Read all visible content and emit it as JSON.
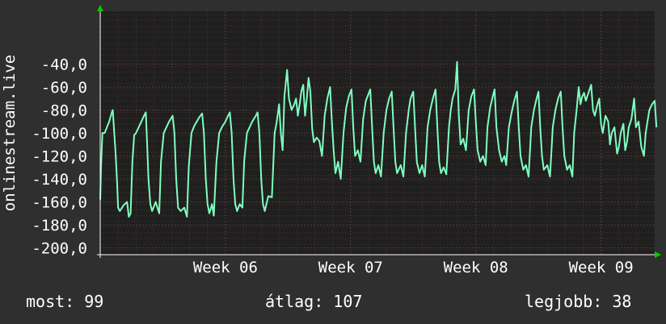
{
  "chart_data": {
    "type": "line",
    "ylabel": "onlinestream.live",
    "ylim": [
      -206,
      6
    ],
    "y_ticks": [
      "-40,0",
      "-60,0",
      "-80,0",
      "-100,0",
      "-120,0",
      "-140,0",
      "-160,0",
      "-180,0",
      "-200,0"
    ],
    "y_tick_values": [
      -40,
      -60,
      -80,
      -100,
      -120,
      -140,
      -160,
      -180,
      -200
    ],
    "x_ticks": [
      "Week 06",
      "Week 07",
      "Week 08",
      "Week 09"
    ],
    "x_tick_days": [
      7,
      14,
      21,
      28
    ],
    "x_range_days": [
      0,
      31
    ],
    "grid": true,
    "colors": {
      "line": "#7fffc0",
      "background": "#1f1f1f",
      "grid": "#5a3a3a",
      "axis_arrow": "#00cc00"
    },
    "series": [
      {
        "values": [
          [
            0.0,
            -158
          ],
          [
            0.05,
            -128
          ],
          [
            0.12,
            -100
          ],
          [
            0.25,
            -100
          ],
          [
            0.35,
            -96
          ],
          [
            0.5,
            -90
          ],
          [
            0.65,
            -82
          ],
          [
            0.7,
            -80
          ],
          [
            0.85,
            -115
          ],
          [
            0.95,
            -145
          ],
          [
            1.0,
            -165
          ],
          [
            1.1,
            -168
          ],
          [
            1.3,
            -163
          ],
          [
            1.5,
            -160
          ],
          [
            1.6,
            -173
          ],
          [
            1.7,
            -170
          ],
          [
            1.8,
            -125
          ],
          [
            1.9,
            -102
          ],
          [
            2.0,
            -100
          ],
          [
            2.15,
            -95
          ],
          [
            2.3,
            -90
          ],
          [
            2.45,
            -85
          ],
          [
            2.55,
            -82
          ],
          [
            2.6,
            -100
          ],
          [
            2.7,
            -140
          ],
          [
            2.8,
            -162
          ],
          [
            2.9,
            -168
          ],
          [
            3.1,
            -160
          ],
          [
            3.3,
            -170
          ],
          [
            3.4,
            -125
          ],
          [
            3.55,
            -100
          ],
          [
            3.7,
            -95
          ],
          [
            3.85,
            -90
          ],
          [
            4.05,
            -85
          ],
          [
            4.15,
            -100
          ],
          [
            4.25,
            -140
          ],
          [
            4.35,
            -165
          ],
          [
            4.5,
            -168
          ],
          [
            4.7,
            -165
          ],
          [
            4.85,
            -173
          ],
          [
            4.95,
            -130
          ],
          [
            5.1,
            -100
          ],
          [
            5.25,
            -94
          ],
          [
            5.4,
            -90
          ],
          [
            5.55,
            -86
          ],
          [
            5.7,
            -83
          ],
          [
            5.8,
            -100
          ],
          [
            5.9,
            -140
          ],
          [
            6.0,
            -162
          ],
          [
            6.1,
            -170
          ],
          [
            6.25,
            -162
          ],
          [
            6.35,
            -172
          ],
          [
            6.5,
            -125
          ],
          [
            6.65,
            -100
          ],
          [
            6.8,
            -95
          ],
          [
            7.0,
            -90
          ],
          [
            7.15,
            -85
          ],
          [
            7.25,
            -82
          ],
          [
            7.35,
            -100
          ],
          [
            7.45,
            -140
          ],
          [
            7.55,
            -162
          ],
          [
            7.65,
            -168
          ],
          [
            7.8,
            -162
          ],
          [
            7.95,
            -165
          ],
          [
            8.05,
            -125
          ],
          [
            8.2,
            -100
          ],
          [
            8.35,
            -95
          ],
          [
            8.5,
            -90
          ],
          [
            8.7,
            -85
          ],
          [
            8.8,
            -82
          ],
          [
            8.9,
            -100
          ],
          [
            9.0,
            -140
          ],
          [
            9.1,
            -162
          ],
          [
            9.2,
            -168
          ],
          [
            9.4,
            -155
          ],
          [
            9.6,
            -156
          ],
          [
            9.75,
            -100
          ],
          [
            9.85,
            -92
          ],
          [
            10.0,
            -75
          ],
          [
            10.1,
            -100
          ],
          [
            10.2,
            -115
          ],
          [
            10.3,
            -68
          ],
          [
            10.45,
            -45
          ],
          [
            10.55,
            -70
          ],
          [
            10.7,
            -80
          ],
          [
            10.85,
            -75
          ],
          [
            10.95,
            -70
          ],
          [
            11.05,
            -85
          ],
          [
            11.15,
            -75
          ],
          [
            11.25,
            -63
          ],
          [
            11.35,
            -58
          ],
          [
            11.45,
            -85
          ],
          [
            11.55,
            -70
          ],
          [
            11.65,
            -52
          ],
          [
            11.75,
            -64
          ],
          [
            11.85,
            -96
          ],
          [
            11.95,
            -108
          ],
          [
            12.1,
            -104
          ],
          [
            12.25,
            -107
          ],
          [
            12.4,
            -120
          ],
          [
            12.55,
            -85
          ],
          [
            12.7,
            -70
          ],
          [
            12.85,
            -60
          ],
          [
            12.95,
            -90
          ],
          [
            13.05,
            -115
          ],
          [
            13.15,
            -135
          ],
          [
            13.3,
            -125
          ],
          [
            13.45,
            -140
          ],
          [
            13.6,
            -100
          ],
          [
            13.75,
            -78
          ],
          [
            13.9,
            -68
          ],
          [
            14.05,
            -62
          ],
          [
            14.15,
            -95
          ],
          [
            14.25,
            -120
          ],
          [
            14.4,
            -115
          ],
          [
            14.55,
            -125
          ],
          [
            14.7,
            -88
          ],
          [
            14.85,
            -72
          ],
          [
            15.0,
            -66
          ],
          [
            15.1,
            -62
          ],
          [
            15.2,
            -95
          ],
          [
            15.3,
            -125
          ],
          [
            15.4,
            -135
          ],
          [
            15.55,
            -128
          ],
          [
            15.7,
            -138
          ],
          [
            15.85,
            -100
          ],
          [
            16.0,
            -80
          ],
          [
            16.15,
            -70
          ],
          [
            16.3,
            -64
          ],
          [
            16.4,
            -95
          ],
          [
            16.5,
            -125
          ],
          [
            16.6,
            -135
          ],
          [
            16.8,
            -128
          ],
          [
            16.95,
            -138
          ],
          [
            17.1,
            -100
          ],
          [
            17.25,
            -80
          ],
          [
            17.35,
            -70
          ],
          [
            17.5,
            -64
          ],
          [
            17.6,
            -95
          ],
          [
            17.7,
            -125
          ],
          [
            17.85,
            -135
          ],
          [
            18.0,
            -128
          ],
          [
            18.15,
            -138
          ],
          [
            18.3,
            -95
          ],
          [
            18.45,
            -80
          ],
          [
            18.6,
            -70
          ],
          [
            18.75,
            -62
          ],
          [
            18.85,
            -95
          ],
          [
            18.95,
            -125
          ],
          [
            19.05,
            -135
          ],
          [
            19.2,
            -130
          ],
          [
            19.35,
            -136
          ],
          [
            19.5,
            -95
          ],
          [
            19.6,
            -80
          ],
          [
            19.7,
            -70
          ],
          [
            19.85,
            -62
          ],
          [
            19.95,
            -38
          ],
          [
            20.05,
            -85
          ],
          [
            20.15,
            -110
          ],
          [
            20.3,
            -105
          ],
          [
            20.45,
            -115
          ],
          [
            20.6,
            -80
          ],
          [
            20.75,
            -68
          ],
          [
            20.9,
            -62
          ],
          [
            21.0,
            -90
          ],
          [
            21.1,
            -115
          ],
          [
            21.25,
            -125
          ],
          [
            21.4,
            -120
          ],
          [
            21.55,
            -128
          ],
          [
            21.65,
            -95
          ],
          [
            21.8,
            -78
          ],
          [
            21.95,
            -68
          ],
          [
            22.05,
            -62
          ],
          [
            22.15,
            -95
          ],
          [
            22.3,
            -115
          ],
          [
            22.45,
            -125
          ],
          [
            22.6,
            -120
          ],
          [
            22.7,
            -128
          ],
          [
            22.85,
            -95
          ],
          [
            23.0,
            -82
          ],
          [
            23.15,
            -72
          ],
          [
            23.3,
            -64
          ],
          [
            23.4,
            -95
          ],
          [
            23.5,
            -120
          ],
          [
            23.65,
            -132
          ],
          [
            23.8,
            -128
          ],
          [
            23.95,
            -138
          ],
          [
            24.1,
            -95
          ],
          [
            24.25,
            -80
          ],
          [
            24.4,
            -70
          ],
          [
            24.5,
            -64
          ],
          [
            24.6,
            -95
          ],
          [
            24.7,
            -120
          ],
          [
            24.8,
            -132
          ],
          [
            25.0,
            -128
          ],
          [
            25.15,
            -138
          ],
          [
            25.3,
            -95
          ],
          [
            25.45,
            -80
          ],
          [
            25.6,
            -70
          ],
          [
            25.75,
            -64
          ],
          [
            25.85,
            -95
          ],
          [
            25.95,
            -120
          ],
          [
            26.1,
            -132
          ],
          [
            26.25,
            -128
          ],
          [
            26.4,
            -138
          ],
          [
            26.5,
            -100
          ],
          [
            26.65,
            -78
          ],
          [
            26.75,
            -60
          ],
          [
            26.85,
            -75
          ],
          [
            26.95,
            -68
          ],
          [
            27.05,
            -65
          ],
          [
            27.15,
            -72
          ],
          [
            27.3,
            -65
          ],
          [
            27.45,
            -58
          ],
          [
            27.55,
            -80
          ],
          [
            27.65,
            -85
          ],
          [
            27.8,
            -75
          ],
          [
            27.9,
            -70
          ],
          [
            28.0,
            -92
          ],
          [
            28.1,
            -100
          ],
          [
            28.25,
            -85
          ],
          [
            28.4,
            -90
          ],
          [
            28.5,
            -110
          ],
          [
            28.6,
            -100
          ],
          [
            28.75,
            -95
          ],
          [
            28.9,
            -118
          ],
          [
            29.0,
            -112
          ],
          [
            29.1,
            -100
          ],
          [
            29.25,
            -92
          ],
          [
            29.35,
            -115
          ],
          [
            29.45,
            -108
          ],
          [
            29.55,
            -95
          ],
          [
            29.7,
            -88
          ],
          [
            29.85,
            -70
          ],
          [
            29.95,
            -95
          ],
          [
            30.1,
            -90
          ],
          [
            30.25,
            -112
          ],
          [
            30.4,
            -120
          ],
          [
            30.5,
            -100
          ],
          [
            30.6,
            -90
          ],
          [
            30.7,
            -80
          ],
          [
            30.85,
            -75
          ],
          [
            31.0,
            -72
          ],
          [
            31.1,
            -95
          ]
        ]
      }
    ]
  },
  "legend": {
    "now": "most: 99",
    "avg": "átlag: 107",
    "max": "legjobb: 38"
  }
}
